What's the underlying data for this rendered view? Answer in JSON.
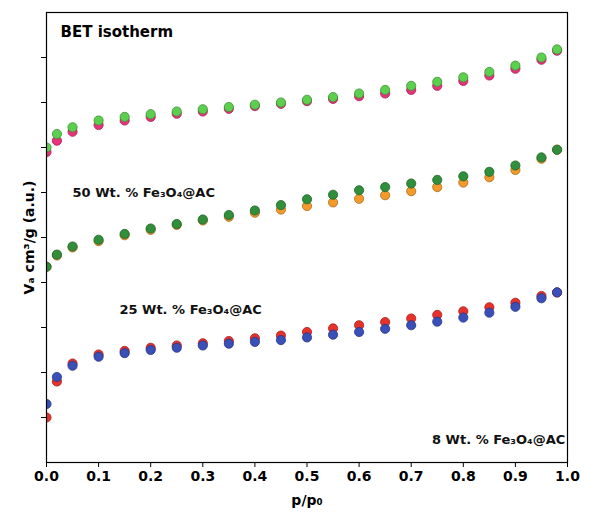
{
  "chart_data": {
    "type": "scatter",
    "title": "BET isotherm",
    "x_label": "p/p₀",
    "y_label": "Vₐ cm³/g (a.u.)",
    "xlim": [
      0,
      1
    ],
    "xticks": [
      {
        "value": 0,
        "label": "0.0"
      },
      0.1,
      0.2,
      0.3,
      0.4,
      0.5,
      0.6,
      0.7,
      0.8,
      0.9,
      {
        "value": 1,
        "label": "1.0"
      }
    ],
    "ylim": [
      0,
      10
    ],
    "yticks": [
      1,
      2,
      3,
      4,
      5,
      6,
      7,
      8,
      9
    ],
    "tick_labels": "x",
    "grid": false,
    "marker": "circle",
    "x": [
      0.0,
      0.02,
      0.05,
      0.1,
      0.15,
      0.2,
      0.25,
      0.3,
      0.35,
      0.4,
      0.45,
      0.5,
      0.55,
      0.6,
      0.65,
      0.7,
      0.75,
      0.8,
      0.85,
      0.9,
      0.95,
      0.98
    ],
    "series": [
      {
        "color": "#e8327a",
        "values": [
          6.9,
          7.15,
          7.35,
          7.5,
          7.6,
          7.68,
          7.75,
          7.8,
          7.86,
          7.92,
          7.97,
          8.03,
          8.08,
          8.14,
          8.2,
          8.28,
          8.37,
          8.48,
          8.6,
          8.75,
          8.95,
          9.15
        ]
      },
      {
        "color": "#5ccf4e",
        "values": [
          7.0,
          7.3,
          7.45,
          7.6,
          7.68,
          7.74,
          7.8,
          7.85,
          7.9,
          7.95,
          8.0,
          8.06,
          8.12,
          8.2,
          8.28,
          8.37,
          8.46,
          8.56,
          8.68,
          8.82,
          9.0,
          9.18
        ]
      },
      {
        "color": "#f39a2a",
        "values": [
          4.35,
          4.6,
          4.78,
          4.92,
          5.05,
          5.17,
          5.28,
          5.38,
          5.46,
          5.55,
          5.62,
          5.7,
          5.78,
          5.86,
          5.94,
          6.03,
          6.12,
          6.22,
          6.34,
          6.5,
          6.75,
          6.95
        ]
      },
      {
        "color": "#2f8f3a",
        "values": [
          4.35,
          4.62,
          4.8,
          4.95,
          5.08,
          5.2,
          5.3,
          5.4,
          5.5,
          5.6,
          5.72,
          5.85,
          5.95,
          6.05,
          6.12,
          6.2,
          6.28,
          6.36,
          6.46,
          6.6,
          6.78,
          6.95
        ]
      },
      {
        "color": "#e8312b",
        "values": [
          1.0,
          1.8,
          2.2,
          2.4,
          2.48,
          2.55,
          2.6,
          2.65,
          2.7,
          2.76,
          2.82,
          2.9,
          2.98,
          3.05,
          3.12,
          3.2,
          3.28,
          3.36,
          3.45,
          3.55,
          3.7,
          3.78
        ]
      },
      {
        "color": "#3a4fb8",
        "values": [
          1.3,
          1.9,
          2.15,
          2.35,
          2.43,
          2.5,
          2.55,
          2.6,
          2.64,
          2.68,
          2.72,
          2.78,
          2.84,
          2.9,
          2.97,
          3.05,
          3.13,
          3.22,
          3.33,
          3.46,
          3.65,
          3.78
        ]
      }
    ],
    "annotations": [
      {
        "text": "50 Wt. % Fe₃O₄@AC",
        "x": 0.05,
        "y": 6.0
      },
      {
        "text": "25 Wt. % Fe₃O₄@AC",
        "x": 0.14,
        "y": 3.4
      },
      {
        "text": "8 Wt. % Fe₃O₄@AC",
        "x": 0.74,
        "y": 0.5
      }
    ]
  }
}
